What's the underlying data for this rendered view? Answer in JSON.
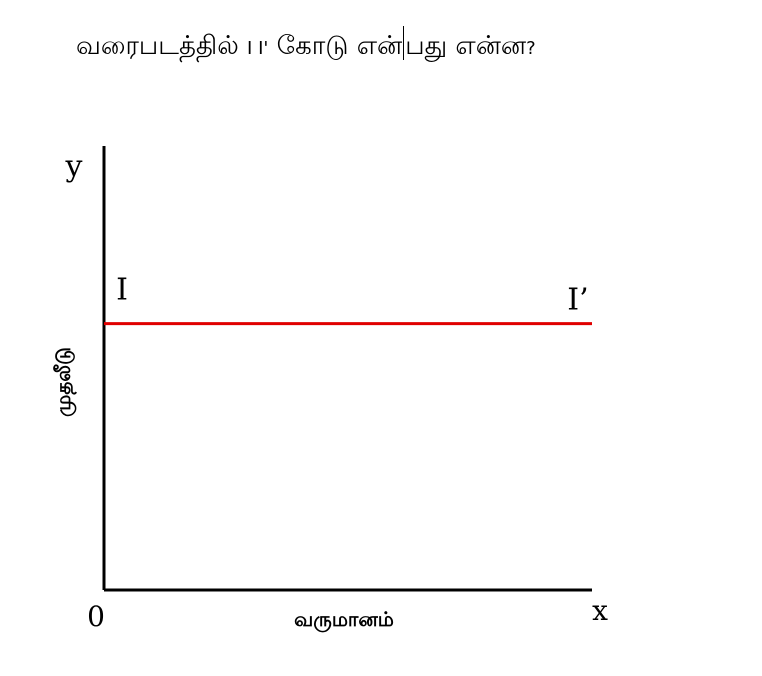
{
  "question": {
    "before": "வரைபடத்தில்",
    "marker": "I I'",
    "after_part1": "கோடு என்",
    "after_part2": "பது என்ன",
    "qmark": "?"
  },
  "chart_data": {
    "type": "line",
    "x_axis_letter": "x",
    "y_axis_letter": "y",
    "origin_label": "0",
    "xlabel": "வருமானம்",
    "ylabel": "முதலீடு",
    "xlim": [
      0,
      10
    ],
    "ylim": [
      0,
      10
    ],
    "grid": false,
    "series": [
      {
        "x": [
          0,
          10
        ],
        "y": [
          6,
          6
        ],
        "color": "#e00000",
        "start_label": "I",
        "end_label": "I’"
      }
    ]
  }
}
